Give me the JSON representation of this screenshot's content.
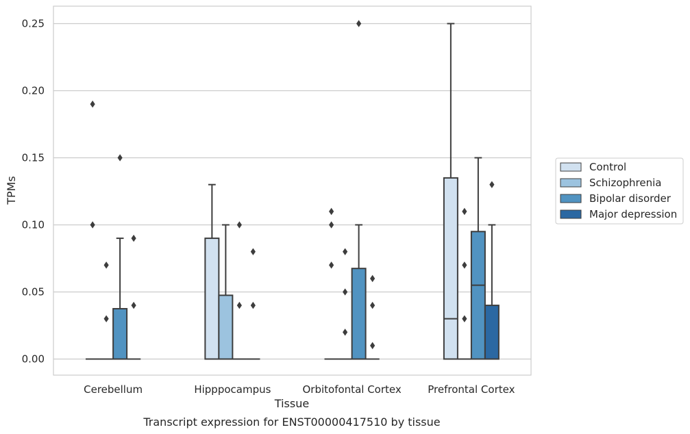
{
  "caption": "Transcript expression for ENST00000417510 by tissue",
  "chart_data": {
    "type": "box",
    "title": "",
    "xlabel": "Tissue",
    "ylabel": "TPMs",
    "ylim": [
      -0.012,
      0.263
    ],
    "yticks": [
      0.0,
      0.05,
      0.1,
      0.15,
      0.2,
      0.25
    ],
    "ytick_labels": [
      "0.00",
      "0.05",
      "0.10",
      "0.15",
      "0.20",
      "0.25"
    ],
    "grid": "horizontal",
    "legend_position": "right",
    "categories": [
      "Cerebellum",
      "Hipppocampus",
      "Orbitofontal Cortex",
      "Prefrontal Cortex"
    ],
    "series": [
      {
        "name": "Control",
        "color": "#d1e1f0",
        "boxes": [
          {
            "category": "Cerebellum",
            "q1": 0,
            "median": 0,
            "q3": 0,
            "whisker_low": 0,
            "whisker_high": 0,
            "outliers": [
              0.19,
              0.1
            ]
          },
          {
            "category": "Hipppocampus",
            "q1": 0,
            "median": 0,
            "q3": 0.09,
            "whisker_low": 0,
            "whisker_high": 0.13,
            "outliers": []
          },
          {
            "category": "Orbitofontal Cortex",
            "q1": 0,
            "median": 0,
            "q3": 0,
            "whisker_low": 0,
            "whisker_high": 0,
            "outliers": [
              0.11,
              0.1,
              0.07
            ]
          },
          {
            "category": "Prefrontal Cortex",
            "q1": 0,
            "median": 0.03,
            "q3": 0.135,
            "whisker_low": 0,
            "whisker_high": 0.25,
            "outliers": []
          }
        ]
      },
      {
        "name": "Schizophrenia",
        "color": "#9cc3df",
        "boxes": [
          {
            "category": "Cerebellum",
            "q1": 0,
            "median": 0,
            "q3": 0,
            "whisker_low": 0,
            "whisker_high": 0,
            "outliers": [
              0.07,
              0.03
            ]
          },
          {
            "category": "Hipppocampus",
            "q1": 0,
            "median": 0,
            "q3": 0.0475,
            "whisker_low": 0,
            "whisker_high": 0.1,
            "outliers": []
          },
          {
            "category": "Orbitofontal Cortex",
            "q1": 0,
            "median": 0,
            "q3": 0,
            "whisker_low": 0,
            "whisker_high": 0,
            "outliers": [
              0.08,
              0.05,
              0.02
            ]
          },
          {
            "category": "Prefrontal Cortex",
            "q1": 0,
            "median": 0,
            "q3": 0,
            "whisker_low": 0,
            "whisker_high": 0,
            "outliers": [
              0.11,
              0.07,
              0.03
            ]
          }
        ]
      },
      {
        "name": "Bipolar disorder",
        "color": "#5193c1",
        "boxes": [
          {
            "category": "Cerebellum",
            "q1": 0,
            "median": 0,
            "q3": 0.0375,
            "whisker_low": 0,
            "whisker_high": 0.09,
            "outliers": [
              0.15
            ]
          },
          {
            "category": "Hipppocampus",
            "q1": 0,
            "median": 0,
            "q3": 0,
            "whisker_low": 0,
            "whisker_high": 0,
            "outliers": [
              0.1,
              0.04
            ]
          },
          {
            "category": "Orbitofontal Cortex",
            "q1": 0,
            "median": 0,
            "q3": 0.0675,
            "whisker_low": 0,
            "whisker_high": 0.1,
            "outliers": [
              0.25
            ]
          },
          {
            "category": "Prefrontal Cortex",
            "q1": 0,
            "median": 0.055,
            "q3": 0.095,
            "whisker_low": 0,
            "whisker_high": 0.15,
            "outliers": []
          }
        ]
      },
      {
        "name": "Major depression",
        "color": "#2b68a2",
        "boxes": [
          {
            "category": "Cerebellum",
            "q1": 0,
            "median": 0,
            "q3": 0,
            "whisker_low": 0,
            "whisker_high": 0,
            "outliers": [
              0.09,
              0.04
            ]
          },
          {
            "category": "Hipppocampus",
            "q1": 0,
            "median": 0,
            "q3": 0,
            "whisker_low": 0,
            "whisker_high": 0,
            "outliers": [
              0.08,
              0.04
            ]
          },
          {
            "category": "Orbitofontal Cortex",
            "q1": 0,
            "median": 0,
            "q3": 0,
            "whisker_low": 0,
            "whisker_high": 0,
            "outliers": [
              0.06,
              0.04,
              0.01
            ]
          },
          {
            "category": "Prefrontal Cortex",
            "q1": 0,
            "median": 0,
            "q3": 0.04,
            "whisker_low": 0,
            "whisker_high": 0.1,
            "outliers": [
              0.13
            ]
          }
        ]
      }
    ]
  }
}
